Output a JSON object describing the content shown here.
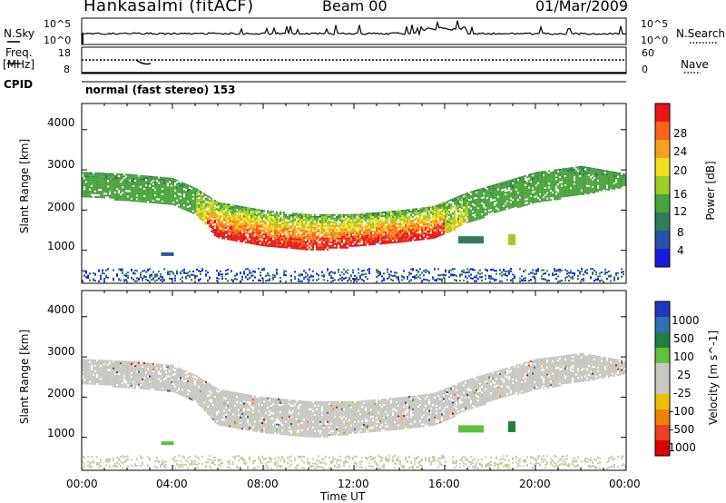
{
  "header": {
    "station": "Hankasalmi (fitACF)",
    "beam": "Beam 00",
    "date": "01/Mar/2009"
  },
  "top_labels": {
    "nsky": "N.Sky",
    "nsearch": "N.Search",
    "freq_line1": "Freq.",
    "freq_line2": "[MHz]",
    "nave": "Nave",
    "cpid": "CPID",
    "noise_ticks_left": [
      "10^5",
      "10^0"
    ],
    "noise_ticks_right": [
      "10^5",
      "10^0"
    ],
    "freq_ticks": [
      "18",
      "8"
    ],
    "nave_ticks": [
      "60",
      "0"
    ],
    "cpid_text": "normal (fast stereo) 153"
  },
  "x_axis": {
    "label": "Time UT",
    "ticks": [
      "00:00",
      "04:00",
      "08:00",
      "12:00",
      "16:00",
      "20:00",
      "00:00"
    ]
  },
  "colors": {
    "power_scale": [
      "#1a1adc",
      "#2a50a8",
      "#2f7c5a",
      "#4aa33c",
      "#9ccc28",
      "#f0e020",
      "#f8a020",
      "#f86418",
      "#e81818"
    ],
    "velocity_scale": [
      "#2038c0",
      "#3070b0",
      "#208040",
      "#60c040",
      "#c8c8c0",
      "#c8c8c0",
      "#f0c000",
      "#f08000",
      "#e84020",
      "#e00000"
    ]
  },
  "chart_data": [
    {
      "type": "heatmap",
      "title": "",
      "xlabel": "Time UT",
      "ylabel": "Slant Range [km]",
      "x_range": [
        "00:00",
        "24:00"
      ],
      "ylim": [
        180,
        4650
      ],
      "y_ticks": [
        "4000",
        "3000",
        "2000",
        "1000"
      ],
      "colorbar": {
        "label": "Power [dB]",
        "range": [
          0,
          32
        ],
        "ticks": [
          "28",
          "24",
          "20",
          "16",
          "12",
          "8",
          "4"
        ]
      },
      "echo_band_lower_km": [
        {
          "t": "00:00",
          "km": 2350
        },
        {
          "t": "02:00",
          "km": 2250
        },
        {
          "t": "04:00",
          "km": 2150
        },
        {
          "t": "05:00",
          "km": 1900
        },
        {
          "t": "06:00",
          "km": 1300
        },
        {
          "t": "08:00",
          "km": 1100
        },
        {
          "t": "10:00",
          "km": 1000
        },
        {
          "t": "12:00",
          "km": 1100
        },
        {
          "t": "14:00",
          "km": 1200
        },
        {
          "t": "15:30",
          "km": 1300
        },
        {
          "t": "17:00",
          "km": 1700
        },
        {
          "t": "18:30",
          "km": 2000
        },
        {
          "t": "20:00",
          "km": 2200
        },
        {
          "t": "22:00",
          "km": 2400
        },
        {
          "t": "24:00",
          "km": 2600
        }
      ],
      "echo_band_upper_km": [
        {
          "t": "00:00",
          "km": 2950
        },
        {
          "t": "02:00",
          "km": 2900
        },
        {
          "t": "04:00",
          "km": 2800
        },
        {
          "t": "05:00",
          "km": 2550
        },
        {
          "t": "06:00",
          "km": 2200
        },
        {
          "t": "08:00",
          "km": 2000
        },
        {
          "t": "10:00",
          "km": 1900
        },
        {
          "t": "12:00",
          "km": 1900
        },
        {
          "t": "14:00",
          "km": 2000
        },
        {
          "t": "15:30",
          "km": 2100
        },
        {
          "t": "17:00",
          "km": 2450
        },
        {
          "t": "18:30",
          "km": 2700
        },
        {
          "t": "20:00",
          "km": 2950
        },
        {
          "t": "22:00",
          "km": 3100
        },
        {
          "t": "24:00",
          "km": 2900
        }
      ]
    },
    {
      "type": "heatmap",
      "title": "",
      "xlabel": "Time UT",
      "ylabel": "Slant Range [km]",
      "x_range": [
        "00:00",
        "24:00"
      ],
      "ylim": [
        180,
        4650
      ],
      "y_ticks": [
        "4000",
        "3000",
        "2000",
        "1000"
      ],
      "colorbar": {
        "label": "Velocity [m s^-1]",
        "range": [
          -1250,
          1250
        ],
        "ticks": [
          "1000",
          "500",
          "100",
          "25",
          "-25",
          "-100",
          "-500",
          "-1000"
        ]
      }
    }
  ]
}
